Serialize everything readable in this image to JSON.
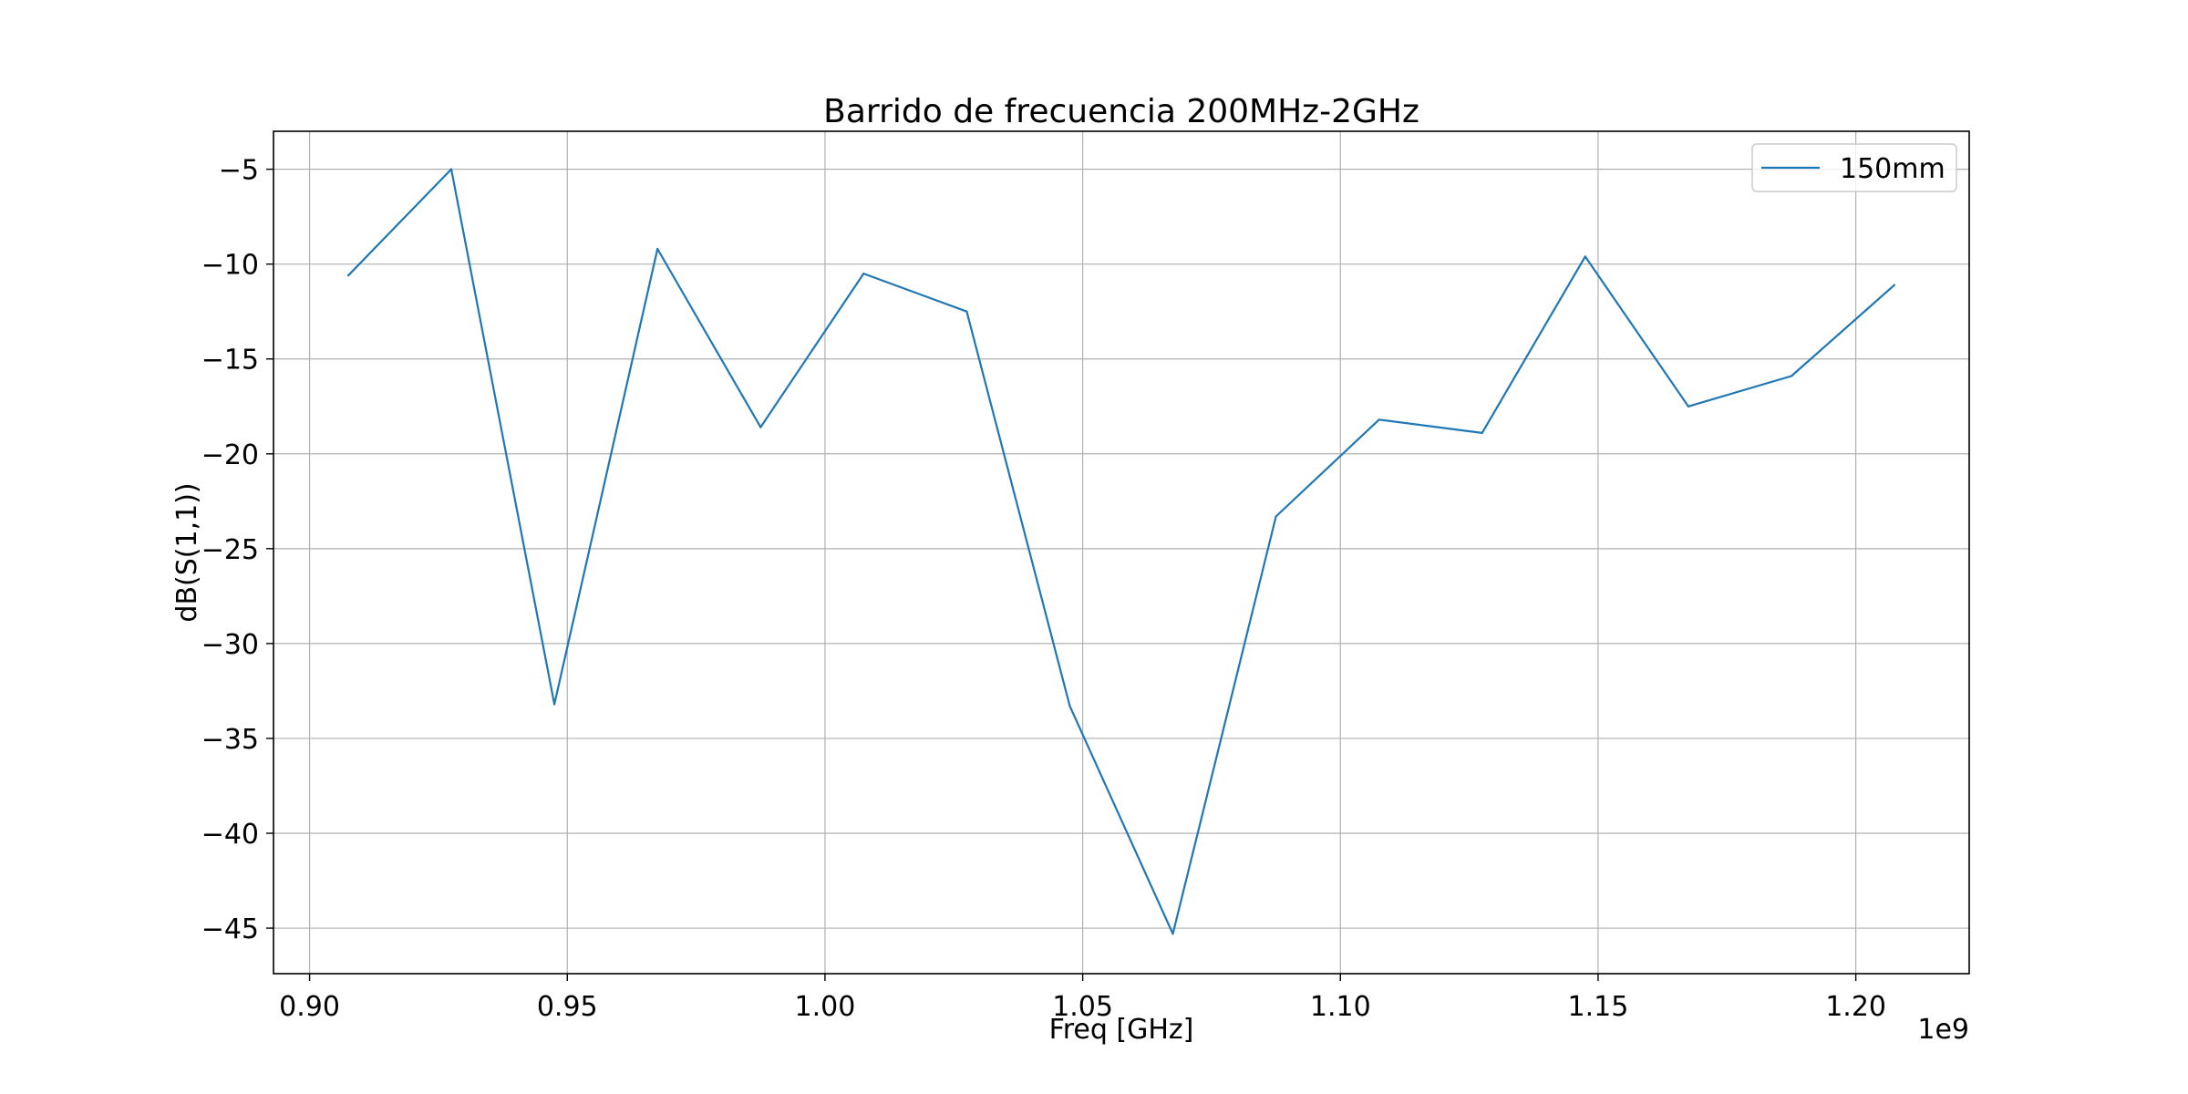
{
  "chart_data": {
    "type": "line",
    "title": "Barrido de frecuencia 200MHz-2GHz",
    "xlabel": "Freq [GHz]",
    "ylabel": "dB(S(1,1))",
    "x_offset_text": "1e9",
    "xlim": [
      0.893,
      1.222
    ],
    "ylim": [
      -47.4,
      -3.0
    ],
    "xticks": [
      0.9,
      0.95,
      1.0,
      1.05,
      1.1,
      1.15,
      1.2
    ],
    "xtick_labels": [
      "0.90",
      "0.95",
      "1.00",
      "1.05",
      "1.10",
      "1.15",
      "1.20"
    ],
    "yticks": [
      -5,
      -10,
      -15,
      -20,
      -25,
      -30,
      -35,
      -40,
      -45
    ],
    "ytick_labels": [
      "−5",
      "−10",
      "−15",
      "−20",
      "−25",
      "−30",
      "−35",
      "−40",
      "−45"
    ],
    "grid": true,
    "legend_position": "top-right",
    "series": [
      {
        "name": "150mm",
        "color": "#1f77b4",
        "x": [
          0.9075,
          0.9275,
          0.9475,
          0.9675,
          0.9875,
          1.0075,
          1.0275,
          1.0475,
          1.0675,
          1.0875,
          1.1075,
          1.1275,
          1.1475,
          1.1675,
          1.1875,
          1.2075
        ],
        "y": [
          -10.6,
          -5.0,
          -33.2,
          -9.2,
          -18.6,
          -10.5,
          -12.5,
          -33.3,
          -45.3,
          -23.3,
          -18.2,
          -18.9,
          -9.6,
          -17.5,
          -15.9,
          -11.1
        ]
      }
    ]
  }
}
